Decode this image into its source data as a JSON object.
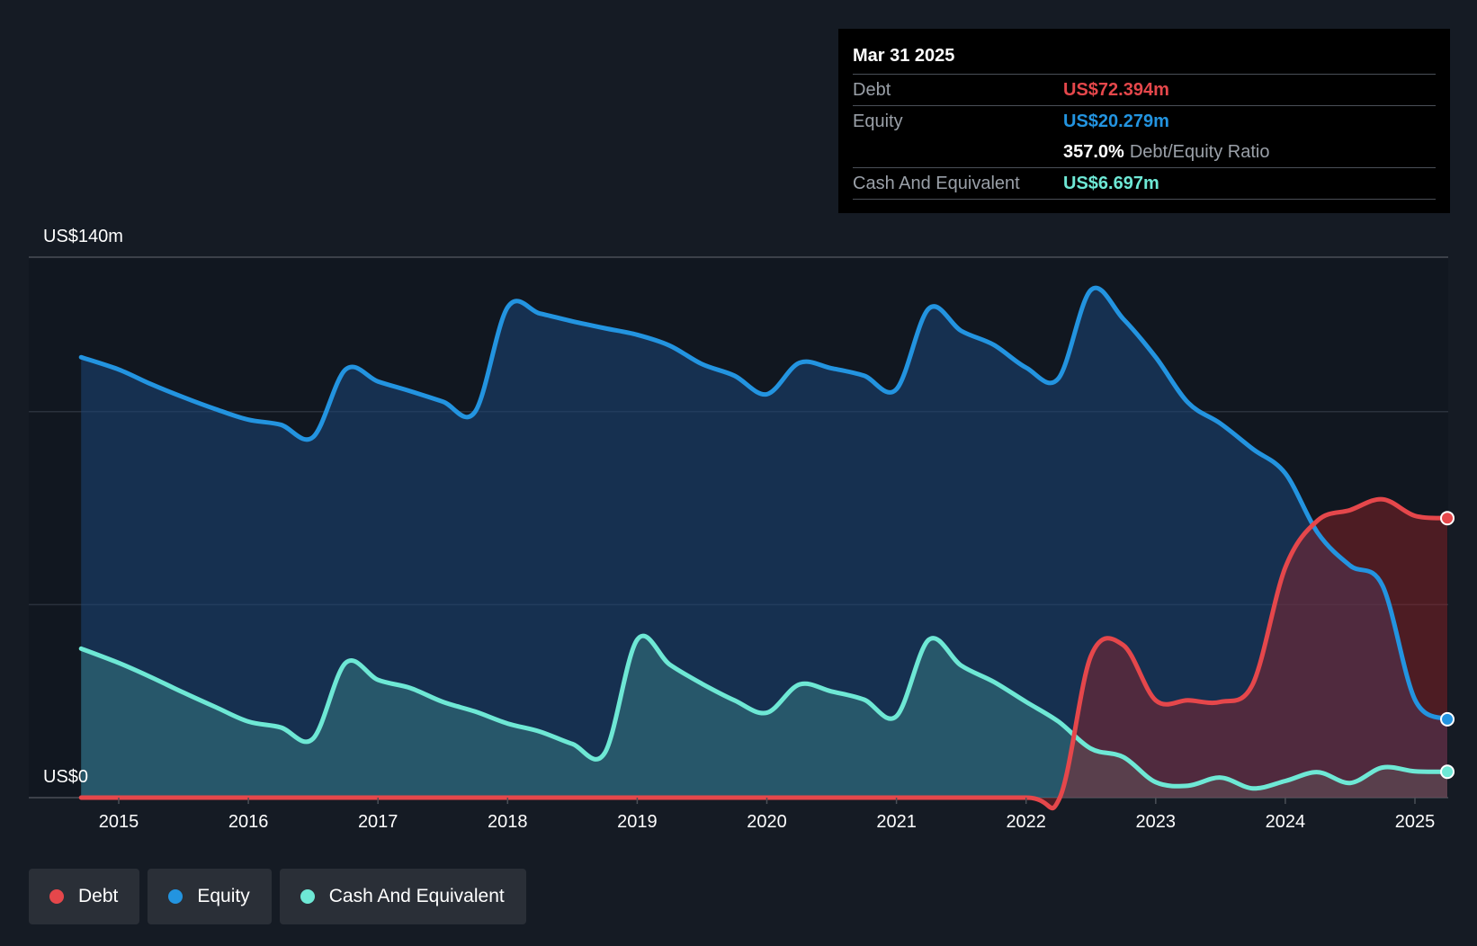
{
  "tooltip": {
    "date": "Mar 31 2025",
    "debt_label": "Debt",
    "debt_value": "US$72.394m",
    "equity_label": "Equity",
    "equity_value": "US$20.279m",
    "ratio_value": "357.0%",
    "ratio_label": "Debt/Equity Ratio",
    "cash_label": "Cash And Equivalent",
    "cash_value": "US$6.697m"
  },
  "legend": {
    "debt": "Debt",
    "equity": "Equity",
    "cash": "Cash And Equivalent"
  },
  "colors": {
    "debt": "#e5474b",
    "equity": "#2394e0",
    "cash": "#6ee8d5",
    "background": "#151b24",
    "tooltip_bg": "#000000"
  },
  "chart_data": {
    "type": "area",
    "y_top_label": "US$140m",
    "y_zero_label": "US$0",
    "ylim": [
      0,
      140
    ],
    "xlim": [
      2014.6,
      2025.25
    ],
    "grid": true,
    "x_ticks": [
      {
        "label": "2015",
        "value": 2015
      },
      {
        "label": "2016",
        "value": 2016
      },
      {
        "label": "2017",
        "value": 2017
      },
      {
        "label": "2018",
        "value": 2018
      },
      {
        "label": "2019",
        "value": 2019
      },
      {
        "label": "2020",
        "value": 2020
      },
      {
        "label": "2021",
        "value": 2021
      },
      {
        "label": "2022",
        "value": 2022
      },
      {
        "label": "2023",
        "value": 2023
      },
      {
        "label": "2024",
        "value": 2024
      },
      {
        "label": "2025",
        "value": 2025
      }
    ],
    "series": [
      {
        "name": "Equity",
        "key": "equity",
        "points": [
          [
            2014.71,
            114.1
          ],
          [
            2015.0,
            110.9
          ],
          [
            2015.25,
            107.1
          ],
          [
            2015.5,
            103.7
          ],
          [
            2015.75,
            100.6
          ],
          [
            2016.0,
            97.9
          ],
          [
            2016.25,
            96.6
          ],
          [
            2016.5,
            93.4
          ],
          [
            2016.75,
            110.9
          ],
          [
            2017.0,
            107.8
          ],
          [
            2017.25,
            105.3
          ],
          [
            2017.5,
            102.6
          ],
          [
            2017.75,
            100.0
          ],
          [
            2018.0,
            127.0
          ],
          [
            2018.25,
            125.4
          ],
          [
            2018.5,
            123.4
          ],
          [
            2018.75,
            121.6
          ],
          [
            2019.0,
            119.9
          ],
          [
            2019.25,
            117.1
          ],
          [
            2019.5,
            112.3
          ],
          [
            2019.75,
            109.3
          ],
          [
            2020.0,
            104.5
          ],
          [
            2020.25,
            112.6
          ],
          [
            2020.5,
            111.2
          ],
          [
            2020.75,
            109.3
          ],
          [
            2021.0,
            105.8
          ],
          [
            2021.25,
            126.7
          ],
          [
            2021.5,
            120.9
          ],
          [
            2021.75,
            117.3
          ],
          [
            2022.0,
            111.4
          ],
          [
            2022.25,
            108.6
          ],
          [
            2022.5,
            131.5
          ],
          [
            2022.75,
            124.0
          ],
          [
            2023.0,
            114.1
          ],
          [
            2023.25,
            102.3
          ],
          [
            2023.5,
            96.9
          ],
          [
            2023.75,
            90.3
          ],
          [
            2024.0,
            84.0
          ],
          [
            2024.25,
            68.6
          ],
          [
            2024.5,
            60.1
          ],
          [
            2024.75,
            54.9
          ],
          [
            2025.0,
            25.4
          ],
          [
            2025.25,
            20.3
          ]
        ]
      },
      {
        "name": "Cash And Equivalent",
        "key": "cash",
        "points": [
          [
            2014.71,
            38.6
          ],
          [
            2015.0,
            34.9
          ],
          [
            2015.25,
            31.2
          ],
          [
            2015.5,
            27.2
          ],
          [
            2015.75,
            23.4
          ],
          [
            2016.0,
            19.7
          ],
          [
            2016.25,
            18.2
          ],
          [
            2016.5,
            15.3
          ],
          [
            2016.75,
            34.9
          ],
          [
            2017.0,
            30.5
          ],
          [
            2017.25,
            28.4
          ],
          [
            2017.5,
            24.8
          ],
          [
            2017.75,
            22.3
          ],
          [
            2018.0,
            19.2
          ],
          [
            2018.25,
            17.1
          ],
          [
            2018.5,
            13.9
          ],
          [
            2018.75,
            11.6
          ],
          [
            2019.0,
            40.9
          ],
          [
            2019.25,
            34.5
          ],
          [
            2019.5,
            29.5
          ],
          [
            2019.75,
            25.2
          ],
          [
            2020.0,
            22.0
          ],
          [
            2020.25,
            29.3
          ],
          [
            2020.5,
            27.5
          ],
          [
            2020.75,
            25.4
          ],
          [
            2021.0,
            21.1
          ],
          [
            2021.25,
            40.9
          ],
          [
            2021.5,
            34.2
          ],
          [
            2021.75,
            30.0
          ],
          [
            2022.0,
            24.8
          ],
          [
            2022.25,
            19.7
          ],
          [
            2022.5,
            12.7
          ],
          [
            2022.75,
            10.5
          ],
          [
            2023.0,
            4.0
          ],
          [
            2023.25,
            3.1
          ],
          [
            2023.5,
            5.2
          ],
          [
            2023.75,
            2.4
          ],
          [
            2024.0,
            4.3
          ],
          [
            2024.25,
            6.6
          ],
          [
            2024.5,
            3.8
          ],
          [
            2024.75,
            7.8
          ],
          [
            2025.0,
            6.8
          ],
          [
            2025.25,
            6.7
          ]
        ]
      },
      {
        "name": "Debt",
        "key": "debt",
        "points": [
          [
            2014.71,
            0.0
          ],
          [
            2015.0,
            0.0
          ],
          [
            2016.0,
            0.0
          ],
          [
            2017.0,
            0.0
          ],
          [
            2018.0,
            0.0
          ],
          [
            2019.0,
            0.0
          ],
          [
            2020.0,
            0.0
          ],
          [
            2021.0,
            0.0
          ],
          [
            2022.0,
            0.0
          ],
          [
            2022.26,
            0.0
          ],
          [
            2022.5,
            36.7
          ],
          [
            2022.75,
            39.5
          ],
          [
            2023.0,
            25.2
          ],
          [
            2023.25,
            25.2
          ],
          [
            2023.5,
            24.8
          ],
          [
            2023.75,
            29.5
          ],
          [
            2024.0,
            59.6
          ],
          [
            2024.25,
            71.8
          ],
          [
            2024.5,
            74.5
          ],
          [
            2024.75,
            77.3
          ],
          [
            2025.0,
            73.0
          ],
          [
            2025.25,
            72.4
          ]
        ]
      }
    ]
  }
}
